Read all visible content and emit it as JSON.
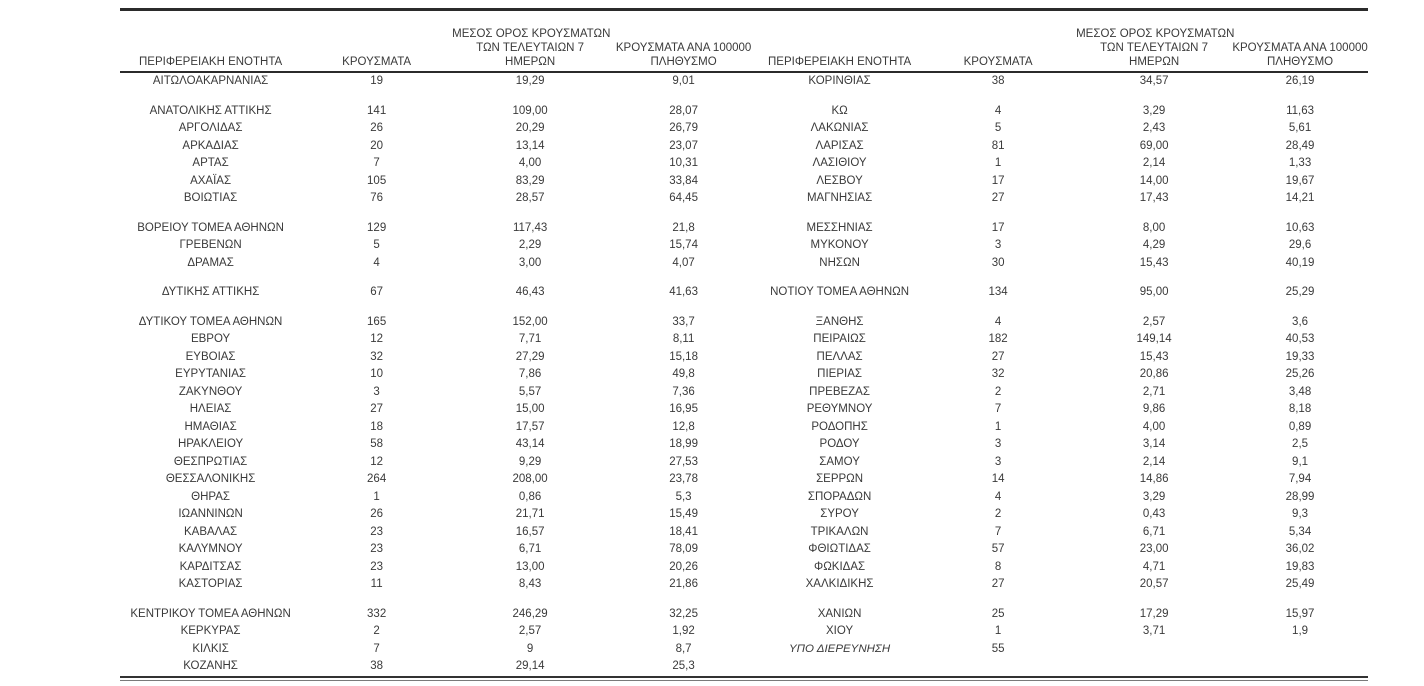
{
  "colors": {
    "text": "#3a3a3a",
    "rule": "#2b2b2b",
    "background": "#ffffff"
  },
  "table": {
    "headers": {
      "region": "ΠΕΡΙΦΕΡΕΙΑΚΗ ΕΝΟΤΗΤΑ",
      "cases": "ΚΡΟΥΣΜΑΤΑ",
      "avg7_lines": [
        "ΜΕΣΟΣ ΟΡΟΣ ΚΡΟΥΣΜΑΤΩΝ",
        "ΤΩΝ ΤΕΛΕΥΤΑΙΩΝ 7",
        "ΗΜΕΡΩΝ"
      ],
      "per100k_lines": [
        "ΚΡΟΥΣΜΑΤΑ ΑΝΑ 100000",
        "ΠΛΗΘΥΣΜΟ"
      ]
    },
    "rows": [
      {
        "left": [
          "ΑΙΤΩΛΟΑΚΑΡΝΑΝΙΑΣ",
          "19",
          "19,29",
          "9,01"
        ],
        "right": [
          "ΚΟΡΙΝΘΙΑΣ",
          "38",
          "34,57",
          "26,19"
        ]
      },
      {
        "spacer": true
      },
      {
        "left": [
          "ΑΝΑΤΟΛΙΚΗΣ ΑΤΤΙΚΗΣ",
          "141",
          "109,00",
          "28,07"
        ],
        "right": [
          "ΚΩ",
          "4",
          "3,29",
          "11,63"
        ]
      },
      {
        "left": [
          "ΑΡΓΟΛΙΔΑΣ",
          "26",
          "20,29",
          "26,79"
        ],
        "right": [
          "ΛΑΚΩΝΙΑΣ",
          "5",
          "2,43",
          "5,61"
        ]
      },
      {
        "left": [
          "ΑΡΚΑΔΙΑΣ",
          "20",
          "13,14",
          "23,07"
        ],
        "right": [
          "ΛΑΡΙΣΑΣ",
          "81",
          "69,00",
          "28,49"
        ]
      },
      {
        "left": [
          "ΑΡΤΑΣ",
          "7",
          "4,00",
          "10,31"
        ],
        "right": [
          "ΛΑΣΙΘΙΟΥ",
          "1",
          "2,14",
          "1,33"
        ]
      },
      {
        "left": [
          "ΑΧΑΪΑΣ",
          "105",
          "83,29",
          "33,84"
        ],
        "right": [
          "ΛΕΣΒΟΥ",
          "17",
          "14,00",
          "19,67"
        ]
      },
      {
        "left": [
          "ΒΟΙΩΤΙΑΣ",
          "76",
          "28,57",
          "64,45"
        ],
        "right": [
          "ΜΑΓΝΗΣΙΑΣ",
          "27",
          "17,43",
          "14,21"
        ]
      },
      {
        "spacer": true
      },
      {
        "left": [
          "ΒΟΡΕΙΟΥ ΤΟΜΕΑ ΑΘΗΝΩΝ",
          "129",
          "117,43",
          "21,8"
        ],
        "right": [
          "ΜΕΣΣΗΝΙΑΣ",
          "17",
          "8,00",
          "10,63"
        ]
      },
      {
        "left": [
          "ΓΡΕΒΕΝΩΝ",
          "5",
          "2,29",
          "15,74"
        ],
        "right": [
          "ΜΥΚΟΝΟΥ",
          "3",
          "4,29",
          "29,6"
        ]
      },
      {
        "left": [
          "ΔΡΑΜΑΣ",
          "4",
          "3,00",
          "4,07"
        ],
        "right": [
          "ΝΗΣΩΝ",
          "30",
          "15,43",
          "40,19"
        ]
      },
      {
        "spacer": true
      },
      {
        "left": [
          "ΔΥΤΙΚΗΣ ΑΤΤΙΚΗΣ",
          "67",
          "46,43",
          "41,63"
        ],
        "right": [
          "ΝΟΤΙΟΥ ΤΟΜΕΑ ΑΘΗΝΩΝ",
          "134",
          "95,00",
          "25,29"
        ]
      },
      {
        "spacer": true
      },
      {
        "left": [
          "ΔΥΤΙΚΟΥ ΤΟΜΕΑ ΑΘΗΝΩΝ",
          "165",
          "152,00",
          "33,7"
        ],
        "right": [
          "ΞΑΝΘΗΣ",
          "4",
          "2,57",
          "3,6"
        ]
      },
      {
        "left": [
          "ΕΒΡΟΥ",
          "12",
          "7,71",
          "8,11"
        ],
        "right": [
          "ΠΕΙΡΑΙΩΣ",
          "182",
          "149,14",
          "40,53"
        ]
      },
      {
        "left": [
          "ΕΥΒΟΙΑΣ",
          "32",
          "27,29",
          "15,18"
        ],
        "right": [
          "ΠΕΛΛΑΣ",
          "27",
          "15,43",
          "19,33"
        ]
      },
      {
        "left": [
          "ΕΥΡΥΤΑΝΙΑΣ",
          "10",
          "7,86",
          "49,8"
        ],
        "right": [
          "ΠΙΕΡΙΑΣ",
          "32",
          "20,86",
          "25,26"
        ]
      },
      {
        "left": [
          "ΖΑΚΥΝΘΟΥ",
          "3",
          "5,57",
          "7,36"
        ],
        "right": [
          "ΠΡΕΒΕΖΑΣ",
          "2",
          "2,71",
          "3,48"
        ]
      },
      {
        "left": [
          "ΗΛΕΙΑΣ",
          "27",
          "15,00",
          "16,95"
        ],
        "right": [
          "ΡΕΘΥΜΝΟΥ",
          "7",
          "9,86",
          "8,18"
        ]
      },
      {
        "left": [
          "ΗΜΑΘΙΑΣ",
          "18",
          "17,57",
          "12,8"
        ],
        "right": [
          "ΡΟΔΟΠΗΣ",
          "1",
          "4,00",
          "0,89"
        ]
      },
      {
        "left": [
          "ΗΡΑΚΛΕΙΟΥ",
          "58",
          "43,14",
          "18,99"
        ],
        "right": [
          "ΡΟΔΟΥ",
          "3",
          "3,14",
          "2,5"
        ]
      },
      {
        "left": [
          "ΘΕΣΠΡΩΤΙΑΣ",
          "12",
          "9,29",
          "27,53"
        ],
        "right": [
          "ΣΑΜΟΥ",
          "3",
          "2,14",
          "9,1"
        ]
      },
      {
        "left": [
          "ΘΕΣΣΑΛΟΝΙΚΗΣ",
          "264",
          "208,00",
          "23,78"
        ],
        "right": [
          "ΣΕΡΡΩΝ",
          "14",
          "14,86",
          "7,94"
        ]
      },
      {
        "left": [
          "ΘΗΡΑΣ",
          "1",
          "0,86",
          "5,3"
        ],
        "right": [
          "ΣΠΟΡΑΔΩΝ",
          "4",
          "3,29",
          "28,99"
        ]
      },
      {
        "left": [
          "ΙΩΑΝΝΙΝΩΝ",
          "26",
          "21,71",
          "15,49"
        ],
        "right": [
          "ΣΥΡΟΥ",
          "2",
          "0,43",
          "9,3"
        ]
      },
      {
        "left": [
          "ΚΑΒΑΛΑΣ",
          "23",
          "16,57",
          "18,41"
        ],
        "right": [
          "ΤΡΙΚΑΛΩΝ",
          "7",
          "6,71",
          "5,34"
        ]
      },
      {
        "left": [
          "ΚΑΛΥΜΝΟΥ",
          "23",
          "6,71",
          "78,09"
        ],
        "right": [
          "ΦΘΙΩΤΙΔΑΣ",
          "57",
          "23,00",
          "36,02"
        ]
      },
      {
        "left": [
          "ΚΑΡΔΙΤΣΑΣ",
          "23",
          "13,00",
          "20,26"
        ],
        "right": [
          "ΦΩΚΙΔΑΣ",
          "8",
          "4,71",
          "19,83"
        ]
      },
      {
        "left": [
          "ΚΑΣΤΟΡΙΑΣ",
          "11",
          "8,43",
          "21,86"
        ],
        "right": [
          "ΧΑΛΚΙΔΙΚΗΣ",
          "27",
          "20,57",
          "25,49"
        ]
      },
      {
        "spacer": true
      },
      {
        "left": [
          "ΚΕΝΤΡΙΚΟΥ ΤΟΜΕΑ ΑΘΗΝΩΝ",
          "332",
          "246,29",
          "32,25"
        ],
        "right": [
          "ΧΑΝΙΩΝ",
          "25",
          "17,29",
          "15,97"
        ]
      },
      {
        "left": [
          "ΚΕΡΚΥΡΑΣ",
          "2",
          "2,57",
          "1,92"
        ],
        "right": [
          "ΧΙΟΥ",
          "1",
          "3,71",
          "1,9"
        ]
      },
      {
        "left": [
          "ΚΙΛΚΙΣ",
          "7",
          "9",
          "8,7"
        ],
        "right": [
          "ΥΠΟ ΔΙΕΡΕΥΝΗΣΗ",
          "55",
          "",
          ""
        ],
        "right_italic": true
      },
      {
        "left": [
          "ΚΟΖΑΝΗΣ",
          "38",
          "29,14",
          "25,3"
        ],
        "right": [
          "",
          "",
          "",
          ""
        ]
      }
    ]
  }
}
